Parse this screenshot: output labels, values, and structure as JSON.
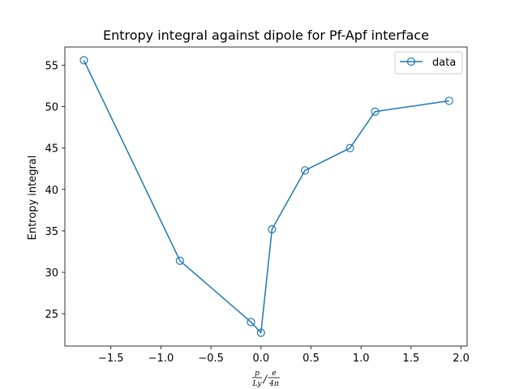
{
  "chart_data": {
    "type": "line",
    "title": "Entropy integral against dipole for Pf-Apf interface",
    "xlabel": "",
    "ylabel": "Entropy integral",
    "xlabel_fraction": {
      "outer_num": "p",
      "outer_den": "Ly",
      "inner_num": "e",
      "inner_den": "4π"
    },
    "xlim": [
      -1.96,
      2.06
    ],
    "ylim": [
      21.1,
      57.2
    ],
    "xticks": [
      -1.5,
      -1.0,
      -0.5,
      0.0,
      0.5,
      1.0,
      1.5,
      2.0
    ],
    "xtick_labels": [
      "−1.5",
      "−1.0",
      "−0.5",
      "0.0",
      "0.5",
      "1.0",
      "1.5",
      "2.0"
    ],
    "yticks": [
      25,
      30,
      35,
      40,
      45,
      50,
      55
    ],
    "ytick_labels": [
      "25",
      "30",
      "35",
      "40",
      "45",
      "50",
      "55"
    ],
    "grid": false,
    "legend_position": "top-right",
    "series": [
      {
        "name": "data",
        "color": "#1f77b4",
        "marker": "hollow-circle",
        "x": [
          -1.77,
          -0.81,
          -0.1,
          0.0,
          0.11,
          0.44,
          0.89,
          1.14,
          1.88
        ],
        "y": [
          55.6,
          31.4,
          24.0,
          22.7,
          35.2,
          42.3,
          45.0,
          49.4,
          50.7
        ]
      }
    ]
  }
}
